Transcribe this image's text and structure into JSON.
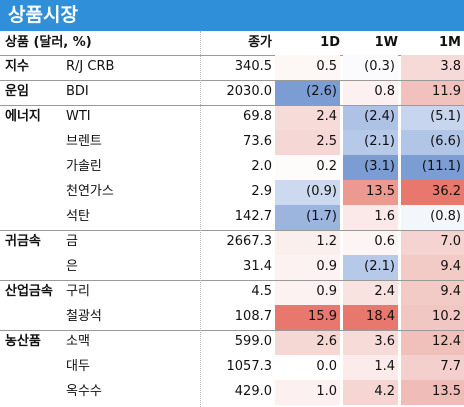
{
  "title": "상품시장",
  "headers": {
    "label": "상품 (달러, %)",
    "close": "종가",
    "d1": "1D",
    "w1": "1W",
    "m1": "1M"
  },
  "rows": [
    {
      "cat": "지수",
      "name": "R/J CRB",
      "close": "340.5",
      "d1": "0.5",
      "w1": "(0.3)",
      "m1": "3.8",
      "c1": "#fdf7f6",
      "c2": "#fbfbfd",
      "c3": "#f6dad8"
    },
    {
      "cat": "운임",
      "name": "BDI",
      "close": "2030.0",
      "d1": "(2.6)",
      "w1": "0.8",
      "m1": "11.9",
      "c1": "#7c9dd3",
      "c2": "#fcf1f0",
      "c3": "#f0c1bd"
    },
    {
      "cat": "에너지",
      "name": "WTI",
      "close": "69.8",
      "d1": "2.4",
      "w1": "(2.4)",
      "m1": "(5.1)",
      "c1": "#f6dbd8",
      "c2": "#adc2e5",
      "c3": "#c7d6ee"
    },
    {
      "cat": "",
      "name": "브렌트",
      "close": "73.6",
      "d1": "2.5",
      "w1": "(2.1)",
      "m1": "(6.6)",
      "c1": "#f5d8d5",
      "c2": "#b7c9e8",
      "c3": "#b1c5e7"
    },
    {
      "cat": "",
      "name": "가솔린",
      "close": "2.0",
      "d1": "0.2",
      "w1": "(3.1)",
      "m1": "(11.1)",
      "c1": "#fefbfb",
      "c2": "#7c9dd3",
      "c3": "#7c9dd3"
    },
    {
      "cat": "",
      "name": "천연가스",
      "close": "2.9",
      "d1": "(0.9)",
      "w1": "13.5",
      "m1": "36.2",
      "c1": "#ccd9ef",
      "c2": "#ec9a91",
      "c3": "#e8786d"
    },
    {
      "cat": "",
      "name": "석탄",
      "close": "142.7",
      "d1": "(1.7)",
      "w1": "1.6",
      "m1": "(0.8)",
      "c1": "#9cb5de",
      "c2": "#fae9e8",
      "c3": "#f3f6fb"
    },
    {
      "cat": "귀금속",
      "name": "금",
      "close": "2667.3",
      "d1": "1.2",
      "w1": "0.6",
      "m1": "7.0",
      "c1": "#fbefee",
      "c2": "#fdf5f4",
      "c3": "#f4d3d0"
    },
    {
      "cat": "",
      "name": "은",
      "close": "31.4",
      "d1": "0.9",
      "w1": "(2.1)",
      "m1": "9.4",
      "c1": "#fcf2f1",
      "c2": "#b7c9e8",
      "c3": "#f2cac6"
    },
    {
      "cat": "산업금속",
      "name": "구리",
      "close": "4.5",
      "d1": "0.9",
      "w1": "2.4",
      "m1": "9.4",
      "c1": "#fcf2f1",
      "c2": "#f8e3e1",
      "c3": "#f2cac6"
    },
    {
      "cat": "",
      "name": "철광석",
      "close": "108.7",
      "d1": "15.9",
      "w1": "18.4",
      "m1": "10.2",
      "c1": "#e8786d",
      "c2": "#e8786d",
      "c3": "#f1c7c3"
    },
    {
      "cat": "농산품",
      "name": "소맥",
      "close": "599.0",
      "d1": "2.6",
      "w1": "3.6",
      "m1": "12.4",
      "c1": "#f5d7d4",
      "c2": "#f6dbd8",
      "c3": "#f0c0bb"
    },
    {
      "cat": "",
      "name": "대두",
      "close": "1057.3",
      "d1": "0.0",
      "w1": "1.4",
      "m1": "7.7",
      "c1": "#ffffff",
      "c2": "#fbeceb",
      "c3": "#f3d0cd"
    },
    {
      "cat": "",
      "name": "옥수수",
      "close": "429.0",
      "d1": "1.0",
      "w1": "4.2",
      "m1": "13.5",
      "c1": "#fcf1f0",
      "c2": "#f5d6d3",
      "c3": "#efbcb7"
    }
  ]
}
